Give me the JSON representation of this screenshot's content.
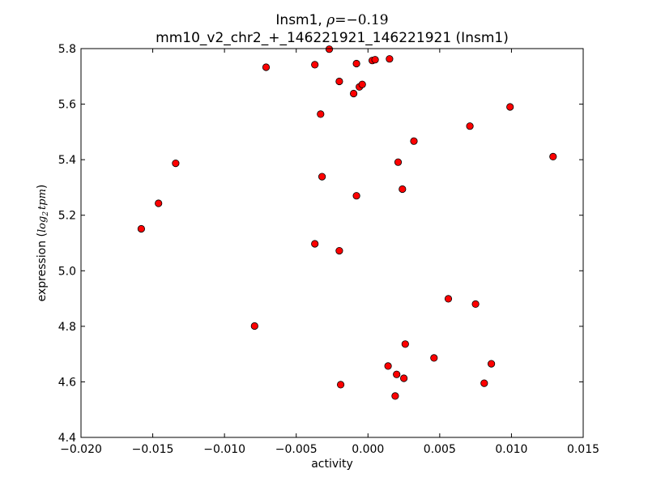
{
  "chart_data": {
    "type": "scatter",
    "title": {
      "gene": "Insm1, ",
      "rho_symbol": "ρ",
      "rho_value": "=−0.19"
    },
    "subtitle": "mm10_v2_chr2_+_146221921_146221921 (Insm1)",
    "xlabel": "activity",
    "ylabel": {
      "text": "expression (",
      "math_main": "log",
      "math_sub": "2",
      "math_tail": "tpm",
      "close": ")"
    },
    "xlim": [
      -0.02,
      0.015
    ],
    "ylim": [
      4.4,
      5.8
    ],
    "x_ticks": [
      {
        "value": -0.02,
        "label": "−0.020"
      },
      {
        "value": -0.015,
        "label": "−0.015"
      },
      {
        "value": -0.01,
        "label": "−0.010"
      },
      {
        "value": -0.005,
        "label": "−0.005"
      },
      {
        "value": 0.0,
        "label": "0.000"
      },
      {
        "value": 0.005,
        "label": "0.005"
      },
      {
        "value": 0.01,
        "label": "0.010"
      },
      {
        "value": 0.015,
        "label": "0.015"
      }
    ],
    "y_ticks": [
      {
        "value": 4.4,
        "label": "4.4"
      },
      {
        "value": 4.6,
        "label": "4.6"
      },
      {
        "value": 4.8,
        "label": "4.8"
      },
      {
        "value": 5.0,
        "label": "5.0"
      },
      {
        "value": 5.2,
        "label": "5.2"
      },
      {
        "value": 5.4,
        "label": "5.4"
      },
      {
        "value": 5.6,
        "label": "5.6"
      },
      {
        "value": 5.8,
        "label": "5.8"
      }
    ],
    "grid": false,
    "marker_color": "#ff0000",
    "marker_edge": "#000000",
    "points": [
      {
        "x": -0.0158,
        "y": 5.151
      },
      {
        "x": -0.0146,
        "y": 5.243
      },
      {
        "x": -0.0134,
        "y": 5.387
      },
      {
        "x": -0.0079,
        "y": 4.801
      },
      {
        "x": -0.0071,
        "y": 5.733
      },
      {
        "x": -0.0037,
        "y": 5.742
      },
      {
        "x": -0.0037,
        "y": 5.097
      },
      {
        "x": -0.0033,
        "y": 5.564
      },
      {
        "x": -0.0032,
        "y": 5.339
      },
      {
        "x": -0.0027,
        "y": 5.798
      },
      {
        "x": -0.002,
        "y": 5.682
      },
      {
        "x": -0.002,
        "y": 5.072
      },
      {
        "x": -0.0019,
        "y": 4.59
      },
      {
        "x": -0.001,
        "y": 5.638
      },
      {
        "x": -0.0008,
        "y": 5.746
      },
      {
        "x": -0.0008,
        "y": 5.27
      },
      {
        "x": -0.0006,
        "y": 5.662
      },
      {
        "x": -0.0004,
        "y": 5.671
      },
      {
        "x": 0.0003,
        "y": 5.757
      },
      {
        "x": 0.0005,
        "y": 5.76
      },
      {
        "x": 0.0014,
        "y": 4.657
      },
      {
        "x": 0.0015,
        "y": 5.763
      },
      {
        "x": 0.0019,
        "y": 4.549
      },
      {
        "x": 0.002,
        "y": 4.627
      },
      {
        "x": 0.0021,
        "y": 5.391
      },
      {
        "x": 0.0024,
        "y": 5.294
      },
      {
        "x": 0.0025,
        "y": 4.613
      },
      {
        "x": 0.0026,
        "y": 4.736
      },
      {
        "x": 0.0032,
        "y": 5.467
      },
      {
        "x": 0.0046,
        "y": 4.686
      },
      {
        "x": 0.0056,
        "y": 4.899
      },
      {
        "x": 0.0071,
        "y": 5.521
      },
      {
        "x": 0.0075,
        "y": 4.88
      },
      {
        "x": 0.0081,
        "y": 4.595
      },
      {
        "x": 0.0086,
        "y": 4.665
      },
      {
        "x": 0.0099,
        "y": 5.59
      },
      {
        "x": 0.0129,
        "y": 5.411
      }
    ]
  }
}
